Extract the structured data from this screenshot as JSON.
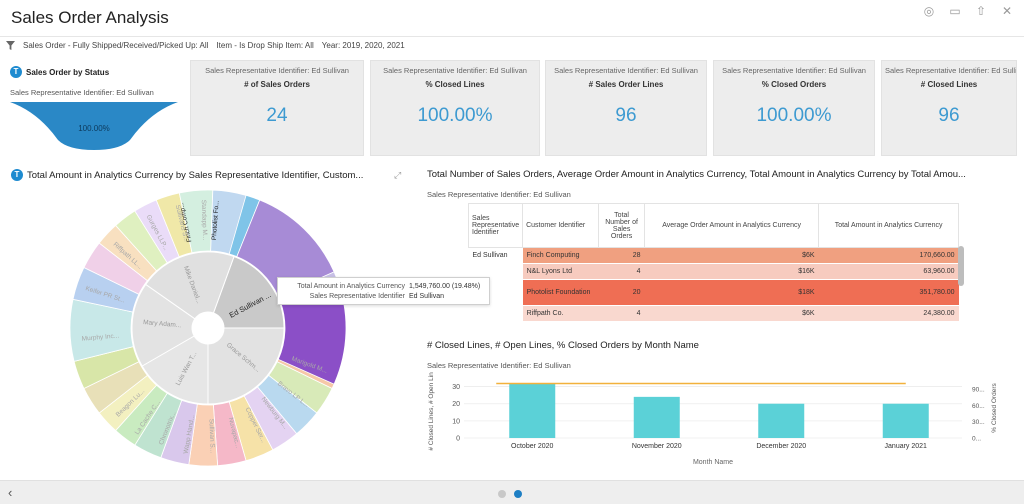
{
  "header": {
    "title": "Sales Order Analysis"
  },
  "filters": [
    "Sales Order - Fully Shipped/Received/Picked Up: All",
    "Item - Is Drop Ship Item: All",
    "Year: 2019, 2020, 2021"
  ],
  "status_widget": {
    "title": "Sales Order by Status",
    "subtitle": "Sales Representative Identifier: Ed Sullivan",
    "value": "100.00%",
    "color": "#2a88c6"
  },
  "kpis": [
    {
      "caption": "Sales Representative Identifier: Ed Sullivan",
      "label": "# of Sales Orders",
      "value": "24"
    },
    {
      "caption": "Sales Representative Identifier: Ed Sullivan",
      "label": "% Closed Lines",
      "value": "100.00%"
    },
    {
      "caption": "Sales Representative Identifier: Ed Sullivan",
      "label": "# Sales Order Lines",
      "value": "96"
    },
    {
      "caption": "Sales Representative Identifier: Ed Sullivan",
      "label": "% Closed Orders",
      "value": "100.00%"
    },
    {
      "caption": "Sales Representative Identifier: Ed Sullivan",
      "label": "# Closed Lines",
      "value": "96"
    }
  ],
  "sunburst": {
    "title": "Total Amount in Analytics Currency by Sales Representative Identifier, Custom...",
    "inner_labels": [
      "Ed Sullivan ...",
      "Grace Schm...",
      "Luis Wan T...",
      "Mary Adam...",
      "Mike Daniel..."
    ],
    "outer_labels": [
      "Finch Comp...",
      "Photolist Fo...",
      "Marigold M...",
      "Bravo LP L...",
      "Newburg M...",
      "Copper Ser...",
      "Nuvapac...",
      "Sullivan S...",
      "Wapp Hand...",
      "Chronotrix...",
      "La Cache C...",
      "Beagon Lu...",
      "Murphy Inc...",
      "Keifer PR St...",
      "Riffpath LL...",
      "Gurges LLP...",
      "Sullivans S...",
      "Standapp M..."
    ],
    "tooltip": [
      {
        "key": "Total Amount in Analytics Currency",
        "value": "1,549,760.00 (19.48%)"
      },
      {
        "key": "Sales Representative Identifier",
        "value": "Ed Sullivan"
      }
    ]
  },
  "table_widget": {
    "title": "Total Number of Sales Orders, Average Order Amount in Analytics Currency, Total Amount in Analytics Currency by Total Amou...",
    "subtitle": "Sales Representative Identifier: Ed Sullivan",
    "headers": [
      "Sales Representative Identifier",
      "Customer Identifier",
      "Total Number of Sales Orders",
      "Average Order Amount in Analytics Currency",
      "Total Amount in Analytics Currency"
    ],
    "rep": "Ed Sullivan",
    "rows": [
      {
        "customer": "Finch Computing",
        "orders": "28",
        "avg": "$6K",
        "total": "170,660.00",
        "color": "#f0a080"
      },
      {
        "customer": "N&L Lyons Ltd",
        "orders": "4",
        "avg": "$16K",
        "total": "63,960.00",
        "color": "#f7cbbf"
      },
      {
        "customer": "Photolist Foundation",
        "orders": "20",
        "avg": "$18K",
        "total": "351,780.00",
        "color": "#ef6e54"
      },
      {
        "customer": "Riffpath Co.",
        "orders": "4",
        "avg": "$6K",
        "total": "24,380.00",
        "color": "#f9d8cf"
      }
    ]
  },
  "combo": {
    "title": "# Closed Lines, # Open Lines, % Closed Orders by Month Name",
    "subtitle": "Sales Representative Identifier: Ed Sullivan",
    "y_left_label": "# Closed Lines, # Open Lines",
    "y_right_label": "% Closed Orders",
    "x_label": "Month Name"
  },
  "chart_data": {
    "type": "bar",
    "categories": [
      "October 2020",
      "November 2020",
      "December 2020",
      "January 2021"
    ],
    "series": [
      {
        "name": "# Closed Lines",
        "type": "bar",
        "values": [
          32,
          24,
          20,
          20
        ],
        "color": "#5bd1d7"
      },
      {
        "name": "% Closed Orders",
        "type": "line",
        "values": [
          100,
          100,
          100,
          100
        ],
        "color": "#f2b13c"
      }
    ],
    "y_left_ticks": [
      "30",
      "20",
      "10",
      "0"
    ],
    "y_right_ticks": [
      "90...",
      "60...",
      "30...",
      "0..."
    ],
    "ylim": [
      0,
      35
    ],
    "y2lim": [
      0,
      110
    ],
    "grid": true
  },
  "pager": {
    "active": 1,
    "count": 2
  }
}
